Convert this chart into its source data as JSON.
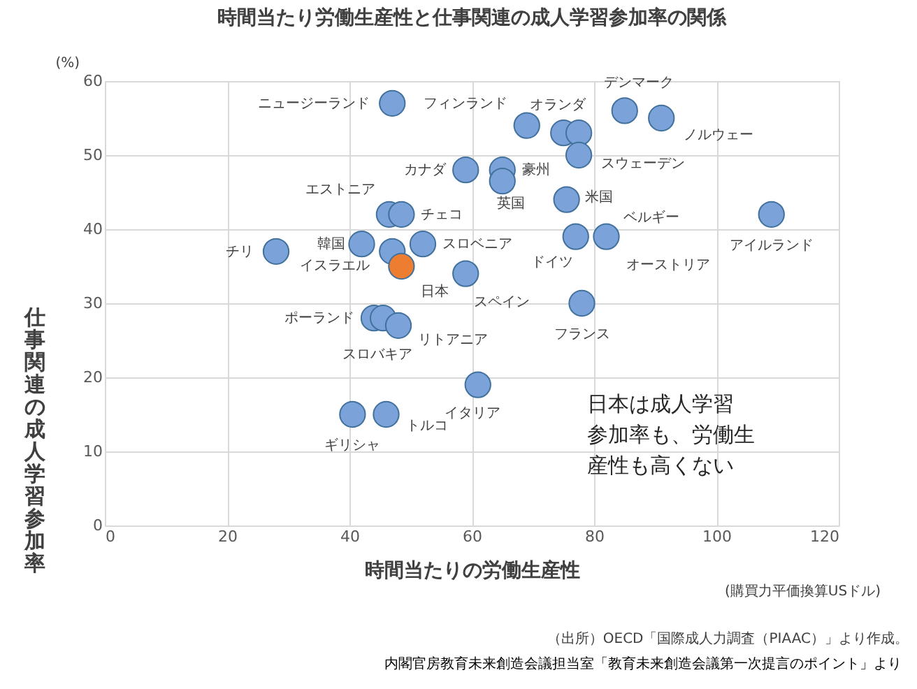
{
  "chart_data": {
    "type": "scatter",
    "title": "時間当たり労働生産性と仕事関連の成人学習参加率の関係",
    "xlabel": "時間当たりの労働生産性",
    "ylabel": "仕事関連の成人学習参加率",
    "xlim": [
      0,
      120
    ],
    "xticks": [
      0,
      20,
      40,
      60,
      80,
      100,
      120
    ],
    "ylim": [
      0,
      60
    ],
    "yticks": [
      0,
      10,
      20,
      30,
      40,
      50,
      60
    ],
    "grid": true,
    "marker": "circle",
    "series": [
      {
        "color": "#7ba3da",
        "x": [
          47,
          69,
          75,
          77.5,
          85,
          91,
          77.5,
          59,
          65,
          65,
          75.5,
          77,
          82,
          109,
          46.5,
          48.5,
          42,
          28,
          52,
          47,
          59,
          78,
          44,
          45.5,
          48,
          61,
          40.5,
          46
        ],
        "values": [
          57,
          54,
          53,
          53,
          56,
          55,
          50,
          48,
          48,
          46.5,
          44,
          39,
          39,
          42,
          42,
          42,
          38,
          37,
          38,
          37,
          34,
          30,
          28,
          28,
          27,
          19,
          15,
          15
        ]
      },
      {
        "color": "#ed7d31",
        "x": [
          48.5
        ],
        "values": [
          35
        ]
      }
    ],
    "annotations": [
      {
        "text": "ニュージーランド",
        "x": 47,
        "y": 57
      },
      {
        "text": "フィンランド",
        "x": 69,
        "y": 54
      },
      {
        "text": "オランダ",
        "x": 75,
        "y": 53
      },
      {
        "text": "デンマーク",
        "x": 85,
        "y": 56
      },
      {
        "text": "ノルウェー",
        "x": 91,
        "y": 55
      },
      {
        "text": "スウェーデン",
        "x": 77.5,
        "y": 50
      },
      {
        "text": "カナダ",
        "x": 59,
        "y": 48
      },
      {
        "text": "豪州",
        "x": 65,
        "y": 48
      },
      {
        "text": "英国",
        "x": 65,
        "y": 46.5
      },
      {
        "text": "米国",
        "x": 75.5,
        "y": 44
      },
      {
        "text": "ベルギー",
        "x": 82,
        "y": 39
      },
      {
        "text": "ドイツ",
        "x": 77,
        "y": 39
      },
      {
        "text": "オーストリア",
        "x": 82,
        "y": 39
      },
      {
        "text": "アイルランド",
        "x": 109,
        "y": 42
      },
      {
        "text": "エストニア",
        "x": 46.5,
        "y": 42
      },
      {
        "text": "チェコ",
        "x": 48.5,
        "y": 42
      },
      {
        "text": "韓国",
        "x": 42,
        "y": 38
      },
      {
        "text": "チリ",
        "x": 28,
        "y": 37
      },
      {
        "text": "スロベニア",
        "x": 52,
        "y": 38
      },
      {
        "text": "イスラエル",
        "x": 47,
        "y": 37
      },
      {
        "text": "日本",
        "x": 48.5,
        "y": 35
      },
      {
        "text": "スペイン",
        "x": 59,
        "y": 34
      },
      {
        "text": "フランス",
        "x": 78,
        "y": 30
      },
      {
        "text": "ポーランド",
        "x": 44,
        "y": 28
      },
      {
        "text": "スロバキア",
        "x": 45.5,
        "y": 28
      },
      {
        "text": "リトアニア",
        "x": 48,
        "y": 27
      },
      {
        "text": "イタリア",
        "x": 61,
        "y": 19
      },
      {
        "text": "ギリシャ",
        "x": 40.5,
        "y": 15
      },
      {
        "text": "トルコ",
        "x": 46,
        "y": 15
      },
      "(%)",
      "(購買力平価換算USドル)",
      "日本は成人学習参加率も、労働生産性も高くない",
      "（出所）OECD「国際成人力調査（PIAAC）」より作成。",
      "内閣官房教育未来創造会議担当室「教育未来創造会議第一次提言のポイント」より"
    ]
  }
}
